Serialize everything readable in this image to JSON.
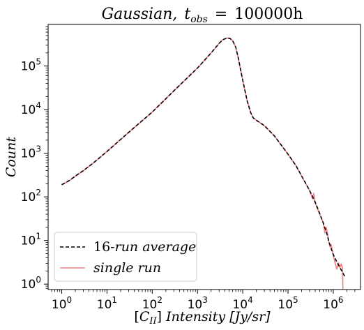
{
  "chart_data": {
    "type": "line",
    "title": "Gaussian, t_obs = 100000h",
    "title_parts": {
      "main": "Gaussian,",
      "t": "t",
      "sub": "obs",
      "eq": "=",
      "value": "100000h"
    },
    "xlabel": "[C_II] Intensity [Jy/sr]",
    "xlabel_parts": {
      "open": "[",
      "c": "C",
      "sub": "II",
      "close": "]",
      "rest": "Intensity [Jy/sr]"
    },
    "ylabel": "Count",
    "x_scale": "log",
    "y_scale": "log",
    "xlim": [
      0.5,
      4000000
    ],
    "ylim": [
      0.75,
      900000
    ],
    "x_ticks": [
      1,
      10,
      100,
      1000,
      10000,
      100000,
      1000000
    ],
    "x_tick_labels": [
      {
        "base": "10",
        "exp": "0"
      },
      {
        "base": "10",
        "exp": "1"
      },
      {
        "base": "10",
        "exp": "2"
      },
      {
        "base": "10",
        "exp": "3"
      },
      {
        "base": "10",
        "exp": "4"
      },
      {
        "base": "10",
        "exp": "5"
      },
      {
        "base": "10",
        "exp": "6"
      }
    ],
    "y_ticks": [
      1,
      10,
      100,
      1000,
      10000,
      100000
    ],
    "y_tick_labels": [
      {
        "base": "10",
        "exp": "0"
      },
      {
        "base": "10",
        "exp": "1"
      },
      {
        "base": "10",
        "exp": "2"
      },
      {
        "base": "10",
        "exp": "3"
      },
      {
        "base": "10",
        "exp": "4"
      },
      {
        "base": "10",
        "exp": "5"
      }
    ],
    "grid": false,
    "legend_position": "lower-left",
    "series": [
      {
        "name": "16-run average",
        "legend_prefix": "16-",
        "legend_rest": "run average",
        "color": "#000000",
        "style": "dashed",
        "points": [
          [
            1.0,
            190
          ],
          [
            1.5,
            240
          ],
          [
            2.0,
            300
          ],
          [
            3.0,
            400
          ],
          [
            5.0,
            600
          ],
          [
            10,
            1100
          ],
          [
            30,
            3000
          ],
          [
            100,
            8800
          ],
          [
            300,
            27000
          ],
          [
            1000,
            90000
          ],
          [
            2000,
            200000
          ],
          [
            3000,
            330000
          ],
          [
            3600,
            400000
          ],
          [
            4500,
            440000
          ],
          [
            5200,
            430000
          ],
          [
            6000,
            380000
          ],
          [
            7000,
            270000
          ],
          [
            8000,
            150000
          ],
          [
            9000,
            80000
          ],
          [
            10500,
            37000
          ],
          [
            12500,
            16000
          ],
          [
            15000,
            8500
          ],
          [
            17000,
            6500
          ],
          [
            20000,
            5700
          ],
          [
            30000,
            4300
          ],
          [
            50000,
            2500
          ],
          [
            80000,
            1300
          ],
          [
            100000,
            950
          ],
          [
            150000,
            520
          ],
          [
            200000,
            300
          ],
          [
            300000,
            140
          ],
          [
            400000,
            75
          ],
          [
            500000,
            42
          ],
          [
            600000,
            25
          ],
          [
            700000,
            16
          ],
          [
            800000,
            9.5
          ],
          [
            900000,
            6.5
          ],
          [
            1000000,
            4.8
          ],
          [
            1200000,
            3.2
          ],
          [
            1500000,
            2.1
          ],
          [
            1800000,
            1.5
          ]
        ]
      },
      {
        "name": "single run",
        "legend_prefix": "",
        "legend_rest": "single run",
        "color": "#f08080",
        "style": "solid",
        "points": [
          [
            1.0,
            188
          ],
          [
            1.5,
            238
          ],
          [
            2.0,
            298
          ],
          [
            3.0,
            398
          ],
          [
            5.0,
            598
          ],
          [
            10,
            1100
          ],
          [
            30,
            3000
          ],
          [
            100,
            8800
          ],
          [
            300,
            27000
          ],
          [
            1000,
            90000
          ],
          [
            2000,
            200000
          ],
          [
            3000,
            330000
          ],
          [
            3600,
            400000
          ],
          [
            4500,
            440000
          ],
          [
            5200,
            430000
          ],
          [
            6000,
            380000
          ],
          [
            7000,
            270000
          ],
          [
            8000,
            150000
          ],
          [
            9000,
            80000
          ],
          [
            10500,
            37000
          ],
          [
            12500,
            16000
          ],
          [
            15000,
            8500
          ],
          [
            17000,
            6500
          ],
          [
            20000,
            5700
          ],
          [
            30000,
            4300
          ],
          [
            50000,
            2500
          ],
          [
            80000,
            1300
          ],
          [
            100000,
            950
          ],
          [
            150000,
            520
          ],
          [
            200000,
            300
          ],
          [
            300000,
            140
          ],
          [
            350000,
            90
          ],
          [
            370000,
            120
          ],
          [
            400000,
            72
          ],
          [
            500000,
            40
          ],
          [
            600000,
            26
          ],
          [
            650000,
            15
          ],
          [
            700000,
            20
          ],
          [
            750000,
            14
          ],
          [
            800000,
            9
          ],
          [
            850000,
            7
          ],
          [
            900000,
            8
          ],
          [
            1000000,
            4.5
          ],
          [
            1100000,
            3
          ],
          [
            1200000,
            2.2
          ],
          [
            1300000,
            3.1
          ],
          [
            1400000,
            2.4
          ],
          [
            1500000,
            2.9
          ],
          [
            1600000,
            2.3
          ],
          [
            1650000,
            0.5
          ]
        ]
      }
    ]
  }
}
